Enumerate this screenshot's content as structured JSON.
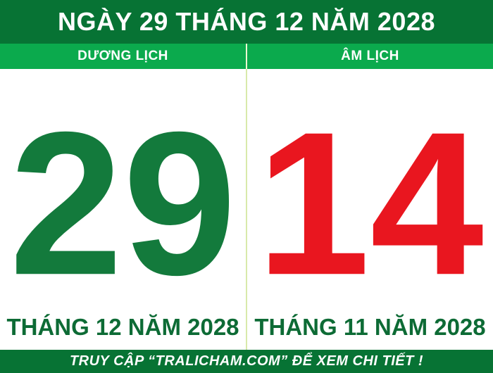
{
  "header": {
    "title": "NGÀY 29 THÁNG 12 NĂM 2028"
  },
  "columns": {
    "solar": {
      "label": "DƯƠNG LỊCH",
      "day": "29",
      "month_year": "THÁNG 12 NĂM 2028"
    },
    "lunar": {
      "label": "ÂM LỊCH",
      "day": "14",
      "month_year": "THÁNG 11 NĂM 2028"
    }
  },
  "footer": {
    "text": "TRUY CẬP “TRALICHAM.COM” ĐỂ XEM CHI TIẾT !"
  },
  "colors": {
    "header_green": "#077334",
    "subheader_green": "#0baa4d",
    "solar_day_green": "#137a3c",
    "lunar_day_red": "#e9161f",
    "month_label_green": "#0d6b35",
    "divider_pale_green": "#d9e9ab",
    "footer_green": "#077334",
    "text_white": "#ffffff"
  }
}
